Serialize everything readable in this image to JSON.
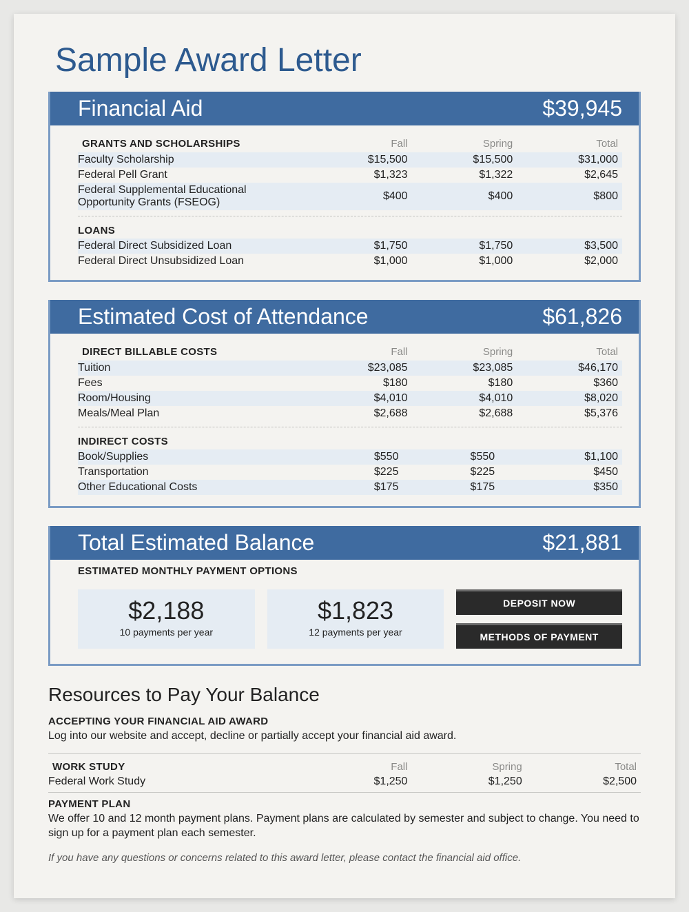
{
  "page_title": "Sample Award Letter",
  "colors": {
    "header_bg": "#3f6ba0",
    "header_text": "#ffffff",
    "border": "#7a9bc4",
    "stripe": "#e5ecf3",
    "page_bg": "#f4f3f0",
    "title_text": "#2d5a8f",
    "btn_bg": "#2a2a2a"
  },
  "columns": {
    "fall": "Fall",
    "spring": "Spring",
    "total": "Total"
  },
  "financial_aid": {
    "title": "Financial Aid",
    "amount": "$39,945",
    "grants_label": "GRANTS AND SCHOLARSHIPS",
    "grants": [
      {
        "label": "Faculty Scholarship",
        "fall": "$15,500",
        "spring": "$15,500",
        "total": "$31,000"
      },
      {
        "label": "Federal Pell Grant",
        "fall": "$1,323",
        "spring": "$1,322",
        "total": "$2,645"
      },
      {
        "label": "Federal Supplemental Educational Opportunity Grants (FSEOG)",
        "fall": "$400",
        "spring": "$400",
        "total": "$800"
      }
    ],
    "loans_label": "LOANS",
    "loans": [
      {
        "label": "Federal Direct Subsidized Loan",
        "fall": "$1,750",
        "spring": "$1,750",
        "total": "$3,500"
      },
      {
        "label": "Federal Direct Unsubsidized Loan",
        "fall": "$1,000",
        "spring": "$1,000",
        "total": "$2,000"
      }
    ]
  },
  "cost": {
    "title": "Estimated Cost of Attendance",
    "amount": "$61,826",
    "direct_label": "DIRECT BILLABLE COSTS",
    "direct": [
      {
        "label": "Tuition",
        "fall": "$23,085",
        "spring": "$23,085",
        "total": "$46,170"
      },
      {
        "label": "Fees",
        "fall": "$180",
        "spring": "$180",
        "total": "$360"
      },
      {
        "label": "Room/Housing",
        "fall": "$4,010",
        "spring": "$4,010",
        "total": "$8,020"
      },
      {
        "label": "Meals/Meal Plan",
        "fall": "$2,688",
        "spring": "$2,688",
        "total": "$5,376"
      }
    ],
    "indirect_label": "INDIRECT COSTS",
    "indirect": [
      {
        "label": "Book/Supplies",
        "fall": "$550",
        "spring": "$550",
        "total": "$1,100"
      },
      {
        "label": "Transportation",
        "fall": "$225",
        "spring": "$225",
        "total": "$450"
      },
      {
        "label": "Other Educational Costs",
        "fall": "$175",
        "spring": "$175",
        "total": "$350"
      }
    ]
  },
  "balance": {
    "title": "Total Estimated Balance",
    "amount": "$21,881",
    "options_label": "ESTIMATED MONTHLY PAYMENT OPTIONS",
    "opt1": {
      "amount": "$2,188",
      "sub": "10 payments per year"
    },
    "opt2": {
      "amount": "$1,823",
      "sub": "12 payments per year"
    },
    "btn_deposit": "DEPOSIT NOW",
    "btn_methods": "METHODS OF PAYMENT"
  },
  "resources": {
    "title": "Resources to Pay Your Balance",
    "accept_label": "ACCEPTING YOUR FINANCIAL AID AWARD",
    "accept_text": "Log into our website and accept, decline or partially accept your financial aid award.",
    "work_label": "WORK STUDY",
    "work": {
      "label": "Federal Work Study",
      "fall": "$1,250",
      "spring": "$1,250",
      "total": "$2,500"
    },
    "plan_label": "PAYMENT PLAN",
    "plan_text": "We offer 10 and 12 month payment plans. Payment plans are calculated by semester and subject to change. You need to sign up for a payment plan each semester.",
    "footnote": "If you have any questions or concerns related to this award letter, please contact the financial aid office."
  }
}
